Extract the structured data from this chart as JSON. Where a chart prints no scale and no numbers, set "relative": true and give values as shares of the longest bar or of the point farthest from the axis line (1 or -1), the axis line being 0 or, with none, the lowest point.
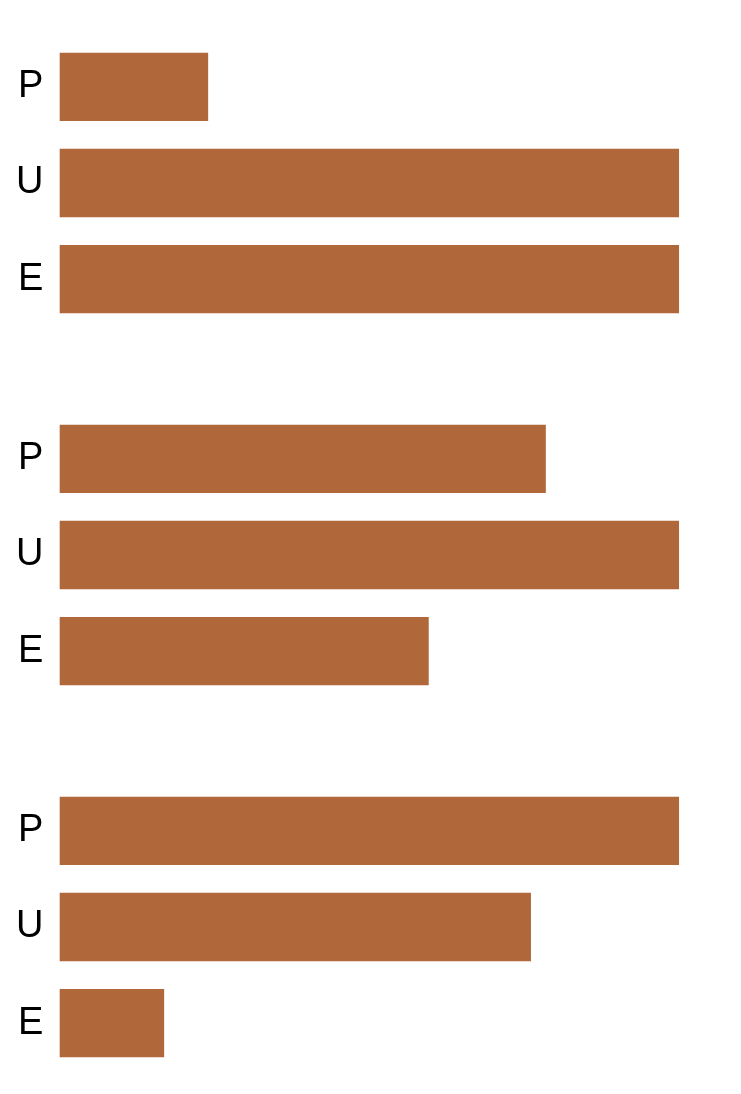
{
  "chart_data": [
    {
      "type": "bar",
      "orientation": "horizontal",
      "relative": true,
      "categories": [
        "P",
        "U",
        "E"
      ],
      "values": [
        0.24,
        1,
        1
      ],
      "color": "#b0673a"
    },
    {
      "type": "bar",
      "orientation": "horizontal",
      "relative": true,
      "categories": [
        "P",
        "U",
        "E"
      ],
      "values": [
        0.785,
        1,
        0.596
      ],
      "color": "#b0673a"
    },
    {
      "type": "bar",
      "orientation": "horizontal",
      "relative": true,
      "categories": [
        "P",
        "U",
        "E"
      ],
      "values": [
        1,
        0.761,
        0.169
      ],
      "color": "#b0673a"
    }
  ]
}
